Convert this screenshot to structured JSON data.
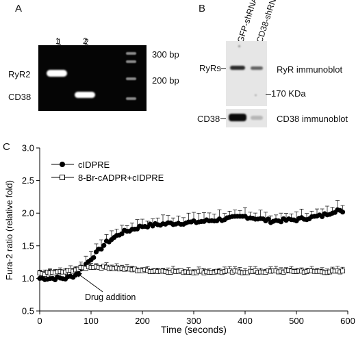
{
  "panel_a": {
    "letter": "A",
    "lane_labels": [
      "1",
      "2"
    ],
    "band_labels": {
      "ryr2": "RyR2",
      "cd38": "CD38"
    },
    "marker_labels": {
      "upper": "300 bp",
      "lower": "200 bp"
    }
  },
  "panel_b": {
    "letter": "B",
    "column_labels": [
      "GFP-shRNA",
      "CD38-shRNA"
    ],
    "left_labels": {
      "ryrs": "RyRs",
      "cd38": "CD38"
    },
    "right_labels": {
      "ryr": "RyR immunoblot",
      "kda": "170 KDa",
      "cd38": "CD38 immunoblot"
    }
  },
  "panel_c": {
    "letter": "C",
    "annotation": "Drug addition"
  },
  "chart_data": {
    "type": "scatter",
    "title": "",
    "xlabel": "Time (seconds)",
    "ylabel": "Fura-2 ratio (relative fold)",
    "xlim": [
      0,
      600
    ],
    "ylim": [
      0.5,
      3.0
    ],
    "xticks": [
      0,
      100,
      200,
      300,
      400,
      500,
      600
    ],
    "yticks": [
      0.5,
      1.0,
      1.5,
      2.0,
      2.5,
      3.0
    ],
    "grid": false,
    "legend_position": "top-left",
    "series": [
      {
        "name": "cIDPRE",
        "marker": "filled-circle",
        "color": "#000000",
        "x": [
          0,
          50,
          70,
          100,
          130,
          160,
          200,
          250,
          300,
          350,
          400,
          450,
          500,
          550,
          580,
          590
        ],
        "y": [
          1.0,
          1.0,
          1.05,
          1.3,
          1.55,
          1.7,
          1.8,
          1.84,
          1.86,
          1.9,
          1.95,
          1.88,
          1.9,
          1.96,
          2.05,
          2.0
        ],
        "error": 0.12
      },
      {
        "name": "8-Br-cADPR+cIDPRE",
        "marker": "open-square",
        "color": "#000000",
        "x": [
          0,
          50,
          80,
          100,
          130,
          160,
          200,
          300,
          400,
          500,
          590
        ],
        "y": [
          1.07,
          1.1,
          1.15,
          1.18,
          1.17,
          1.15,
          1.12,
          1.1,
          1.1,
          1.11,
          1.1
        ],
        "error": 0.06
      }
    ]
  }
}
